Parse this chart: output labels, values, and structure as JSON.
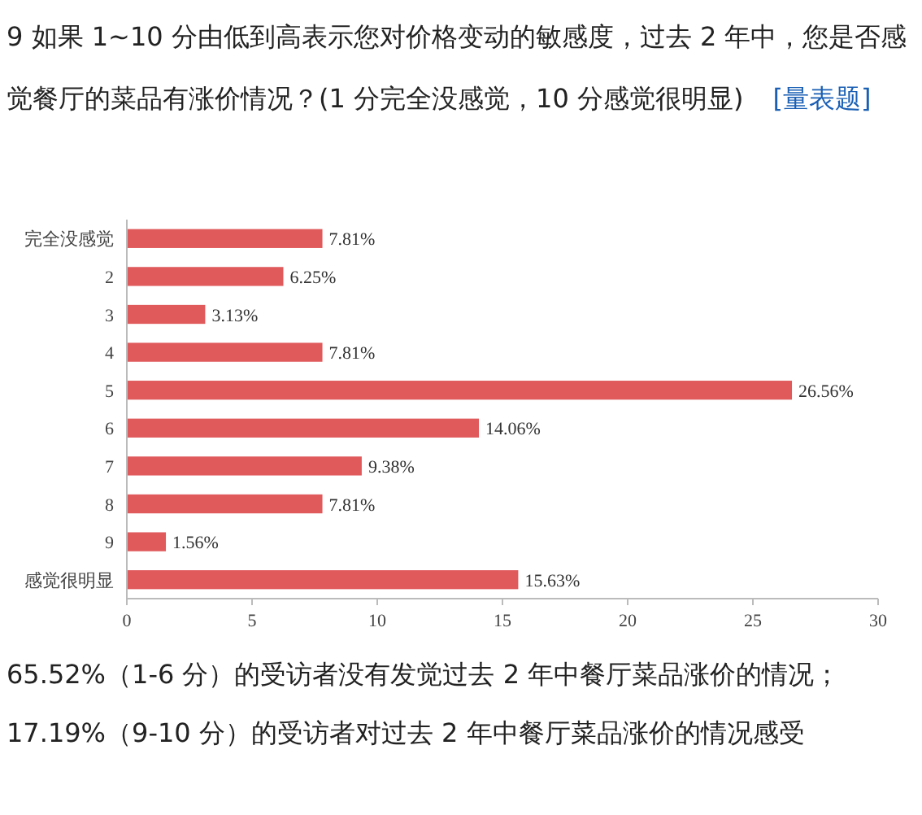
{
  "chart_data": {
    "type": "bar",
    "orientation": "horizontal",
    "title": "9 如果 1~10 分由低到高表示您对价格变动的敏感度，过去 2 年中，您是否感觉餐厅的菜品有涨价情况？(1 分完全没感觉，10 分感觉很明显)",
    "subtitle": "[量表题]",
    "categories": [
      "完全没感觉",
      "2",
      "3",
      "4",
      "5",
      "6",
      "7",
      "8",
      "9",
      "感觉很明显"
    ],
    "values": [
      7.81,
      6.25,
      3.13,
      7.81,
      26.56,
      14.06,
      9.38,
      7.81,
      1.56,
      15.63
    ],
    "value_labels": [
      "7.81%",
      "6.25%",
      "3.13%",
      "7.81%",
      "26.56%",
      "14.06%",
      "9.38%",
      "7.81%",
      "1.56%",
      "15.63%"
    ],
    "color": "#e05a5c",
    "xlim": [
      0,
      30
    ],
    "xticks": [
      0,
      5,
      10,
      15,
      20,
      25,
      30
    ],
    "annotations": [
      "65.52%（1-6 分）的受访者没有发觉过去 2 年中餐厅菜品涨价的情况；",
      "17.19%（9-10 分）的受访者对过去 2 年中餐厅菜品涨价的情况感受"
    ]
  }
}
